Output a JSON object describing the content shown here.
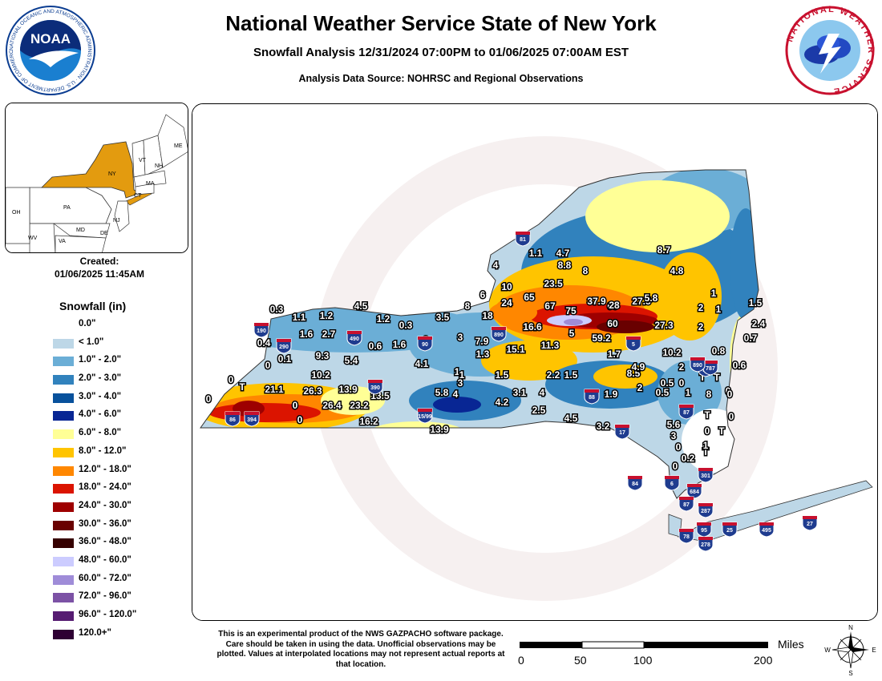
{
  "header": {
    "title": "National Weather Service State of New York",
    "subtitle": "Snowfall Analysis 12/31/2024 07:00PM to 01/06/2025 07:00AM EST",
    "source": "Analysis Data Source: NOHRSC and Regional Observations"
  },
  "logos": {
    "noaa_text": "NOAA",
    "noaa_ring_text": "NATIONAL OCEANIC AND ATMOSPHERIC ADMINISTRATION · U.S. DEPARTMENT OF COMMERCE ·",
    "nws_ring_text": "NATIONAL WEATHER SERVICE"
  },
  "inset_map": {
    "icon": "locator-map-icon",
    "states": [
      "NY",
      "PA",
      "OH",
      "VT",
      "NH",
      "ME",
      "MA",
      "CT",
      "NJ",
      "MD",
      "WV",
      "VA",
      "DE"
    ],
    "highlight_state": "NY",
    "highlight_color": "#e39b0f"
  },
  "created": {
    "label": "Created:",
    "value": "01/06/2025 11:45AM"
  },
  "legend": {
    "title": "Snowfall (in)",
    "items": [
      {
        "label": "0.0\"",
        "color": "#ffffff"
      },
      {
        "label": "< 1.0\"",
        "color": "#bdd7e7"
      },
      {
        "label": "1.0\" - 2.0\"",
        "color": "#6baed6"
      },
      {
        "label": "2.0\" - 3.0\"",
        "color": "#3182bd"
      },
      {
        "label": "3.0\" - 4.0\"",
        "color": "#08519c"
      },
      {
        "label": "4.0\" - 6.0\"",
        "color": "#082694"
      },
      {
        "label": "6.0\" - 8.0\"",
        "color": "#ffff96"
      },
      {
        "label": "8.0\" - 12.0\"",
        "color": "#ffc400"
      },
      {
        "label": "12.0\" - 18.0\"",
        "color": "#ff8700"
      },
      {
        "label": "18.0\" - 24.0\"",
        "color": "#db1400"
      },
      {
        "label": "24.0\" - 30.0\"",
        "color": "#9e0000"
      },
      {
        "label": "30.0\" - 36.0\"",
        "color": "#690000"
      },
      {
        "label": "36.0\" - 48.0\"",
        "color": "#360000"
      },
      {
        "label": "48.0\" - 60.0\"",
        "color": "#ccccff"
      },
      {
        "label": "60.0\" - 72.0\"",
        "color": "#9f8cd8"
      },
      {
        "label": "72.0\" - 96.0\"",
        "color": "#7c52a5"
      },
      {
        "label": "96.0\" - 120.0\"",
        "color": "#561c72"
      },
      {
        "label": "120.0+\"",
        "color": "#2e0033"
      }
    ]
  },
  "watermark_text": "NATIONAL WEATHER SERVICE · U.S. DEPARTMENT OF COMMERCE",
  "stations": [
    "0.3",
    "1.1",
    "1.2",
    "4.5",
    "1.2",
    "0.3",
    "3.5",
    "8",
    "6",
    "10",
    "4",
    "1.1",
    "4.7",
    "8.8",
    "8",
    "23.5",
    "24",
    "65",
    "67",
    "75",
    "37.9",
    "60",
    "28",
    "27.5",
    "8.7",
    "4.8",
    "5.8",
    "1",
    "2",
    "1",
    "1.5",
    "2.4",
    "0.7",
    "1.6",
    "2.7",
    "0.4",
    "0.6",
    "1.6",
    "3",
    "3",
    "7.9",
    "18",
    "16.6",
    "60",
    "5",
    "59.2",
    "27.3",
    "2",
    "0.8",
    "10.2",
    "2",
    "0.6",
    "T",
    "0",
    "0.1",
    "9.3",
    "5.4",
    "4.1",
    "1",
    "1.3",
    "15.1",
    "11.3",
    "1.7",
    "8.5",
    "4.9",
    "0.5",
    "0",
    "T",
    "0",
    "T",
    "10.2",
    "1",
    "3",
    "1.5",
    "2.2",
    "1.5",
    "2",
    "0.5",
    "1",
    "0",
    "0",
    "21.1",
    "26.3",
    "13.9",
    "13.5",
    "5.8",
    "4",
    "3.1",
    "4",
    "1.9",
    "8",
    "0",
    "0",
    "26.4",
    "23.2",
    "4.2",
    "2.5",
    "4.5",
    "5.6",
    "T",
    "0",
    "0",
    "16.2",
    "13.9",
    "3.2",
    "3",
    "T",
    "0",
    "0",
    "T",
    "0.2",
    "0",
    "1",
    "0"
  ],
  "interstates": [
    "81",
    "190",
    "290",
    "490",
    "90",
    "890",
    "390",
    "86",
    "394",
    "15/99",
    "88",
    "87",
    "90",
    "787",
    "890",
    "5",
    "17",
    "84",
    "6",
    "301",
    "684",
    "87",
    "287",
    "95",
    "78",
    "278",
    "495",
    "25",
    "27"
  ],
  "footnote": "This is an experimental product of the NWS GAZPACHO software package. Care should be taken in using the data. Unofficial observations may be plotted. Values at interpolated locations may not represent actual reports at that location.",
  "scale_bar": {
    "unit_label": "Miles",
    "ticks": [
      "0",
      "50",
      "100",
      "200"
    ]
  },
  "compass": {
    "n": "N",
    "s": "S",
    "e": "E",
    "w": "W"
  }
}
